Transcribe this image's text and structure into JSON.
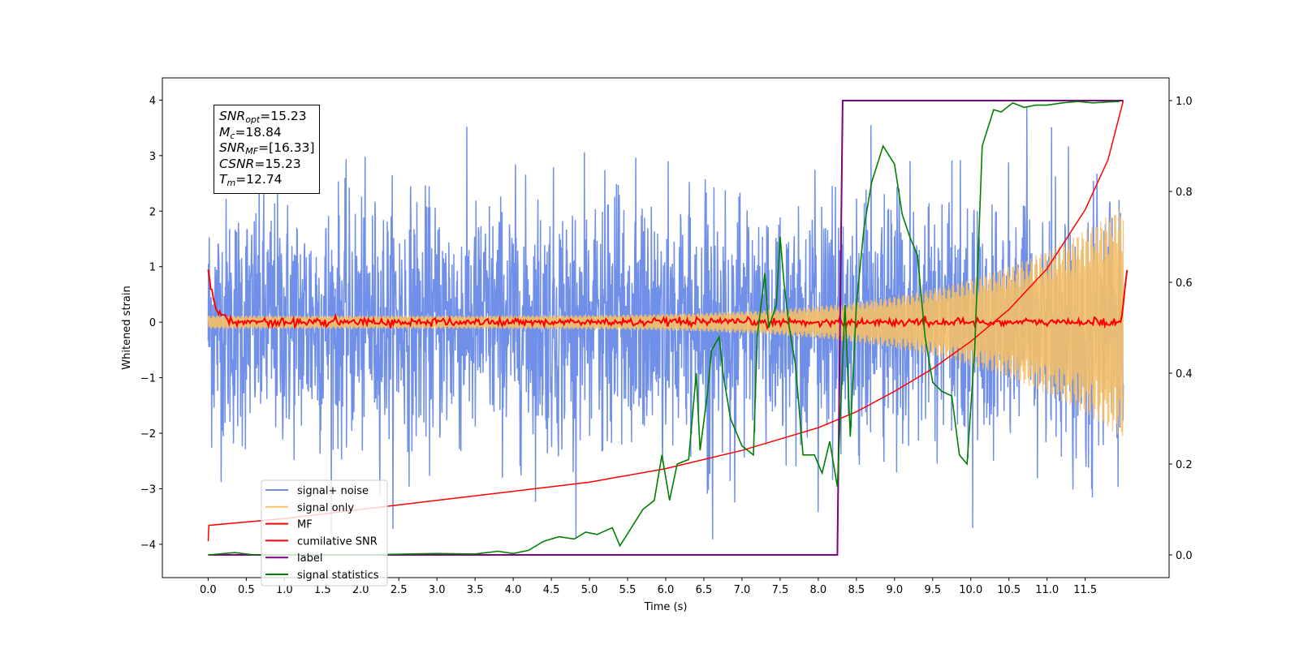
{
  "colors": {
    "signal_noise": "#6f8fe8",
    "signal_only": "#f5c067",
    "mf": "#ff0000",
    "cumulative_snr": "#ff0000",
    "label": "#800080",
    "signal_statistics": "#008000"
  },
  "infobox": [
    {
      "sym": "SNR",
      "sub": "opt",
      "value": "=15.23"
    },
    {
      "sym": "M",
      "sub": "c",
      "value": "=18.84"
    },
    {
      "sym": "SNR",
      "sub": "MF",
      "value": "=[16.33]"
    },
    {
      "sym": "CSNR",
      "sub": "",
      "value": "=15.23"
    },
    {
      "sym": "T",
      "sub": "m",
      "value": "=12.74"
    }
  ],
  "chart_data": {
    "type": "line",
    "xlabel": "Time (s)",
    "ylabel_left": "Whitened strain",
    "ylabel_right": "",
    "xlim": [
      -0.6,
      12.6
    ],
    "ylim_left": [
      -4.6,
      4.4
    ],
    "ylim_right": [
      -0.05,
      1.05
    ],
    "x_ticks": [
      "0.0",
      "0.5",
      "1.0",
      "1.5",
      "2.0",
      "2.5",
      "3.0",
      "3.5",
      "4.0",
      "4.5",
      "5.0",
      "5.5",
      "6.0",
      "6.5",
      "7.0",
      "7.5",
      "8.0",
      "8.5",
      "9.0",
      "9.5",
      "10.0",
      "10.5",
      "11.0",
      "11.5"
    ],
    "y_ticks_left": [
      "4",
      "3",
      "2",
      "1",
      "0",
      "−1",
      "−2",
      "−3",
      "−4"
    ],
    "y_ticks_right": [
      "1.0",
      "0.8",
      "0.6",
      "0.4",
      "0.2",
      "0.0"
    ],
    "legend_position": "lower-left",
    "grid": false,
    "series": [
      {
        "name": "signal+ noise",
        "axis": "left",
        "kind": "noise",
        "x_range": [
          0,
          12.0
        ],
        "amplitude_std": 1.1,
        "envelope_max": 4.0
      },
      {
        "name": "signal only",
        "axis": "left",
        "kind": "chirp",
        "x_range": [
          0,
          12.0
        ],
        "start_amplitude": 0.12,
        "end_amplitude": 2.1
      },
      {
        "name": "MF",
        "axis": "left",
        "kind": "mf",
        "x": [
          0.0,
          0.03,
          0.08,
          0.15,
          0.25,
          0.4,
          12.0,
          12.02,
          12.05
        ],
        "y": [
          0.95,
          0.85,
          0.3,
          0.1,
          0.05,
          0.0,
          0.1,
          0.5,
          0.95
        ]
      },
      {
        "name": "cumilative SNR",
        "axis": "right",
        "x": [
          0.0,
          0.01,
          1.0,
          2.0,
          3.0,
          4.0,
          5.0,
          6.0,
          7.0,
          8.0,
          8.5,
          9.0,
          9.5,
          10.0,
          10.5,
          11.0,
          11.5,
          11.8,
          12.0
        ],
        "y": [
          0.03,
          0.065,
          0.08,
          0.1,
          0.12,
          0.14,
          0.16,
          0.19,
          0.23,
          0.28,
          0.315,
          0.36,
          0.41,
          0.47,
          0.54,
          0.63,
          0.76,
          0.87,
          1.0
        ]
      },
      {
        "name": "label",
        "axis": "right",
        "x": [
          0.0,
          8.25,
          8.32,
          12.0
        ],
        "y": [
          0.0,
          0.0,
          1.0,
          1.0
        ]
      },
      {
        "name": "signal statistics",
        "axis": "right",
        "x": [
          0.0,
          0.35,
          0.6,
          1.0,
          2.0,
          3.0,
          3.5,
          3.8,
          4.0,
          4.2,
          4.4,
          4.6,
          4.8,
          4.95,
          5.1,
          5.3,
          5.4,
          5.55,
          5.7,
          5.85,
          5.95,
          6.05,
          6.15,
          6.3,
          6.4,
          6.45,
          6.55,
          6.6,
          6.7,
          6.75,
          6.85,
          7.0,
          7.15,
          7.2,
          7.3,
          7.35,
          7.45,
          7.5,
          7.55,
          7.62,
          7.7,
          7.8,
          7.95,
          8.05,
          8.15,
          8.25,
          8.35,
          8.42,
          8.5,
          8.6,
          8.7,
          8.85,
          9.0,
          9.1,
          9.2,
          9.3,
          9.4,
          9.5,
          9.62,
          9.75,
          9.85,
          9.95,
          10.05,
          10.15,
          10.3,
          10.4,
          10.55,
          10.7,
          10.85,
          11.0,
          11.2,
          11.4,
          11.6,
          11.8,
          11.95
        ],
        "y": [
          0.0,
          0.005,
          0.0,
          0.0,
          0.0,
          0.003,
          0.002,
          0.008,
          0.003,
          0.01,
          0.03,
          0.04,
          0.035,
          0.05,
          0.045,
          0.06,
          0.02,
          0.06,
          0.1,
          0.12,
          0.22,
          0.12,
          0.2,
          0.21,
          0.4,
          0.23,
          0.36,
          0.45,
          0.48,
          0.4,
          0.3,
          0.24,
          0.22,
          0.48,
          0.62,
          0.5,
          0.55,
          0.7,
          0.6,
          0.5,
          0.42,
          0.22,
          0.22,
          0.18,
          0.25,
          0.15,
          0.55,
          0.26,
          0.55,
          0.72,
          0.82,
          0.9,
          0.86,
          0.75,
          0.7,
          0.66,
          0.48,
          0.38,
          0.36,
          0.35,
          0.22,
          0.2,
          0.45,
          0.9,
          0.98,
          0.975,
          0.995,
          0.985,
          0.99,
          0.99,
          0.995,
          0.998,
          0.995,
          0.997,
          0.998
        ]
      }
    ]
  }
}
